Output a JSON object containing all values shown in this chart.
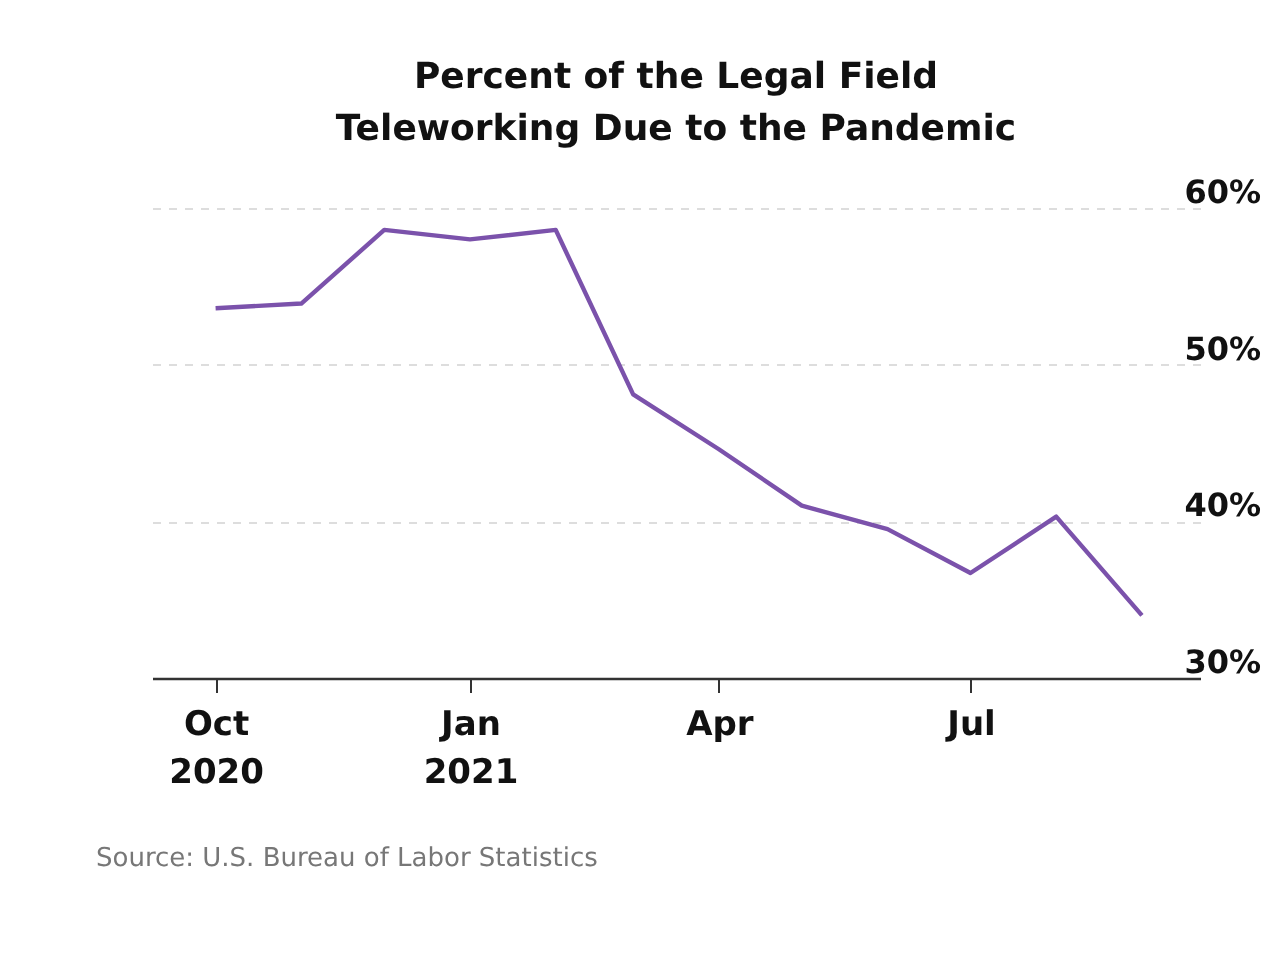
{
  "chart_data": {
    "type": "line",
    "title": "Percent of the Legal Field Teleworking Due to the Pandemic",
    "x": [
      "2020-10",
      "2020-11",
      "2020-12",
      "2021-01",
      "2021-02",
      "2021-03",
      "2021-04",
      "2021-05",
      "2021-06",
      "2021-07",
      "2021-08",
      "2021-09"
    ],
    "series": [
      {
        "color": "#7b52ab",
        "values": [
          53.6,
          53.9,
          58.6,
          58.0,
          58.6,
          48.1,
          44.6,
          41.0,
          39.5,
          36.7,
          40.3,
          34.0
        ]
      }
    ],
    "xlim": [
      "2020-09-08",
      "2021-09-22"
    ],
    "xticks": [
      {
        "value": "2020-10",
        "label": "Oct 2020"
      },
      {
        "value": "2021-01",
        "label": "Jan 2021"
      },
      {
        "value": "2021-04",
        "label": "Apr"
      },
      {
        "value": "2021-07",
        "label": "Jul"
      }
    ],
    "ylim": [
      30,
      60
    ],
    "yticks": [
      {
        "value": 30,
        "label": "30%"
      },
      {
        "value": 40,
        "label": "40%"
      },
      {
        "value": 50,
        "label": "50%"
      },
      {
        "value": 60,
        "label": "60%"
      }
    ],
    "grid": "y",
    "legend": false,
    "marker": "none",
    "line_style": "solid",
    "annotations": [
      "Source: U.S. Bureau of Labor Statistics"
    ]
  }
}
